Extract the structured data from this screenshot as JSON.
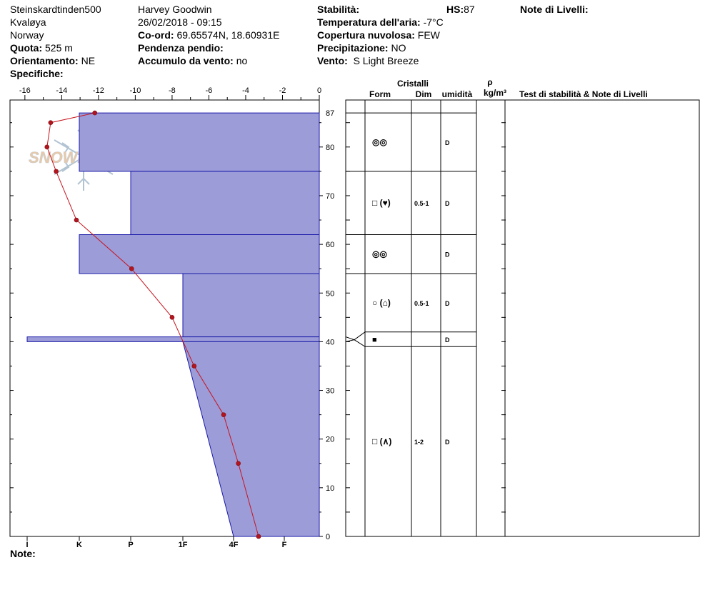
{
  "header": {
    "location": "Steinskardtinden500",
    "region": "Kvaløya",
    "country": "Norway",
    "altitude_label": "Quota:",
    "altitude_value": "525 m",
    "aspect_label": "Orientamento:",
    "aspect_value": "NE",
    "specifics_label": "Specifiche:",
    "observer": "Harvey Goodwin",
    "datetime": "26/02/2018 - 09:15",
    "coord_label": "Co-ord:",
    "coord_value": "69.65574N, 18.60931E",
    "slope_label": "Pendenza pendio:",
    "wind_loading_label": "Accumulo da vento:",
    "wind_loading_value": "no",
    "stability_label": "Stabilità:",
    "hs_label": "HS:",
    "hs_value": "87",
    "air_temp_label": "Temperatura dell'aria:",
    "air_temp_value": "-7°C",
    "cloud_label": "Copertura nuvolosa:",
    "cloud_value": "FEW",
    "precip_label": "Precipitazione:",
    "precip_value": "NO",
    "wind_label": "Vento:",
    "wind_value": "S Light Breeze",
    "layer_notes_label": "Note di Livelli:"
  },
  "footer": {
    "note_label": "Note:"
  },
  "watermark": "SNOWPILOT",
  "table": {
    "title_cristalli": "Cristalli",
    "col_form": "Form",
    "col_dim": "Dim",
    "col_umidita": "umidità",
    "col_rho": "ρ",
    "col_rho_unit": "kg/m³",
    "col_tests": "Test di stabilità & Note di Livelli"
  },
  "chart_data": {
    "type": "snow_profile",
    "temperature_axis": {
      "ticks": [
        "-16",
        "-14",
        "-12",
        "-10",
        "-8",
        "-6",
        "-4",
        "-2",
        "0"
      ],
      "range": [
        -16.5,
        0
      ]
    },
    "hardness_axis": {
      "ticks": [
        "I",
        "K",
        "P",
        "1F",
        "4F",
        "F"
      ]
    },
    "height_axis": {
      "ticks": [
        "0",
        "10",
        "20",
        "30",
        "40",
        "50",
        "60",
        "70",
        "80",
        "87"
      ],
      "range": [
        0,
        90
      ]
    },
    "temperature_profile": [
      {
        "height": 87,
        "temp": -12.2
      },
      {
        "height": 85,
        "temp": -14.6
      },
      {
        "height": 80,
        "temp": -14.8
      },
      {
        "height": 75,
        "temp": -14.3
      },
      {
        "height": 65,
        "temp": -13.2
      },
      {
        "height": 55,
        "temp": -10.2
      },
      {
        "height": 45,
        "temp": -8.0
      },
      {
        "height": 35,
        "temp": -6.8
      },
      {
        "height": 25,
        "temp": -5.2
      },
      {
        "height": 15,
        "temp": -4.4
      },
      {
        "height": 0,
        "temp": -3.3
      }
    ],
    "hardness_layers": [
      {
        "top": 87,
        "bottom": 75,
        "hardness": "K"
      },
      {
        "top": 75,
        "bottom": 62,
        "hardness": "P"
      },
      {
        "top": 62,
        "bottom": 54,
        "hardness": "K"
      },
      {
        "top": 54,
        "bottom": 41,
        "hardness": "1F"
      },
      {
        "top": 41,
        "bottom": 40,
        "hardness": "I"
      },
      {
        "top": 40,
        "bottom": 0,
        "hardness_top": "1F",
        "hardness_bottom": "4F"
      }
    ],
    "layers": [
      {
        "top": 87,
        "bottom": 75,
        "form_icon": "round-grains-icon",
        "form": "◎◎",
        "dim": "",
        "wetness": "D"
      },
      {
        "top": 75,
        "bottom": 62,
        "form_icon": "faceted-crystal-icon",
        "form": "□ (♥)",
        "dim": "0.5-1",
        "wetness": "D"
      },
      {
        "top": 62,
        "bottom": 54,
        "form_icon": "round-grains-icon",
        "form": "◎◎",
        "dim": "",
        "wetness": "D"
      },
      {
        "top": 54,
        "bottom": 42,
        "form_icon": "rounded-faceted-icon",
        "form": "○ (⌂)",
        "dim": "0.5-1",
        "wetness": "D"
      },
      {
        "top": 42,
        "bottom": 39,
        "form_icon": "ice-crust-icon",
        "form": "■",
        "dim": "",
        "wetness": "D"
      },
      {
        "top": 39,
        "bottom": 0,
        "form_icon": "depth-hoar-icon",
        "form": "□ (∧)",
        "dim": "1-2",
        "wetness": "D"
      }
    ]
  }
}
